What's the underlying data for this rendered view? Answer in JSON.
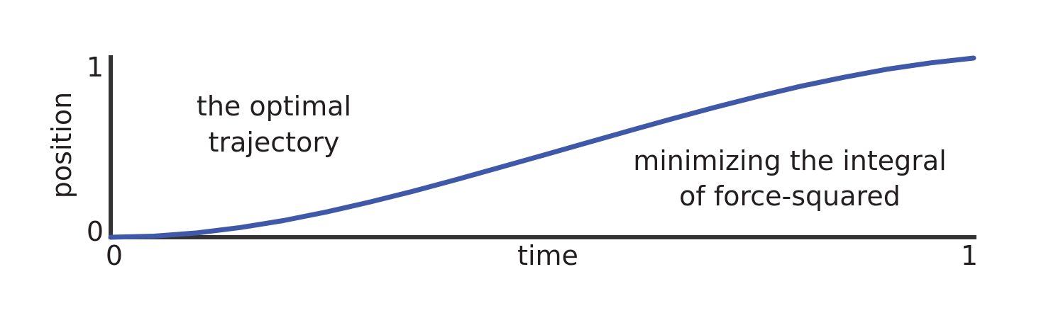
{
  "chart_data": {
    "type": "line",
    "title": "",
    "xlabel": "time",
    "ylabel": "position",
    "xlim": [
      0,
      1
    ],
    "ylim": [
      0,
      1
    ],
    "x_ticks": [
      "0",
      "1"
    ],
    "y_ticks": [
      "0",
      "1"
    ],
    "grid": false,
    "series": [
      {
        "color": "#3f58a8",
        "x": [
          0,
          0.05,
          0.1,
          0.15,
          0.2,
          0.25,
          0.3,
          0.35,
          0.4,
          0.45,
          0.5,
          0.55,
          0.6,
          0.65,
          0.7,
          0.75,
          0.8,
          0.85,
          0.9,
          0.95,
          1
        ],
        "y": [
          0,
          0.006,
          0.024,
          0.054,
          0.093,
          0.141,
          0.196,
          0.256,
          0.321,
          0.388,
          0.456,
          0.525,
          0.593,
          0.66,
          0.725,
          0.786,
          0.843,
          0.893,
          0.938,
          0.973,
          1
        ]
      }
    ],
    "annotations": [
      {
        "lines": [
          "the optimal",
          "trajectory"
        ]
      },
      {
        "lines": [
          "minimizing the integral",
          "of force-squared"
        ]
      }
    ]
  }
}
